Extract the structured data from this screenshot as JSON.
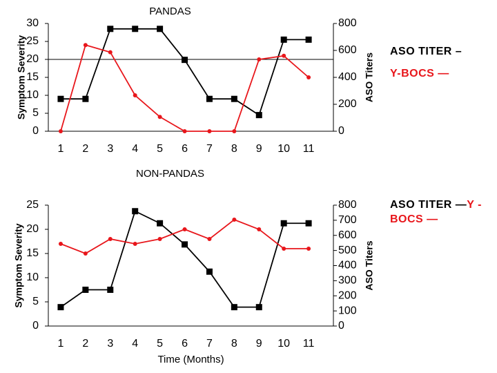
{
  "colors": {
    "aso": "#000000",
    "ybocs": "#e8161b"
  },
  "chart_data": [
    {
      "type": "line",
      "title": "PANDAS",
      "xlabel": "",
      "ylabel": "Symptom Severity",
      "y2label": "ASO Titers",
      "categories": [
        "1",
        "2",
        "3",
        "4",
        "5",
        "6",
        "7",
        "8",
        "9",
        "10",
        "11"
      ],
      "ylim": [
        0,
        30
      ],
      "yticks": [
        "0",
        "5",
        "10",
        "15",
        "20",
        "25",
        "30"
      ],
      "y2lim": [
        0,
        800
      ],
      "y2ticks": [
        "0",
        "200",
        "400",
        "600",
        "800"
      ],
      "reference_line": 20,
      "series": [
        {
          "name": "ASO TITER",
          "axis": "right",
          "marker": "square",
          "values": [
            240,
            240,
            760,
            760,
            760,
            530,
            240,
            240,
            120,
            680,
            680
          ]
        },
        {
          "name": "Y-BOCS",
          "axis": "left",
          "marker": "dot",
          "values": [
            0,
            24,
            22,
            10,
            4,
            0,
            0,
            0,
            20,
            21,
            15
          ]
        }
      ]
    },
    {
      "type": "line",
      "title": "NON-PANDAS",
      "xlabel": "Time (Months)",
      "ylabel": "Symptom Severity",
      "y2label": "ASO Titers",
      "categories": [
        "1",
        "2",
        "3",
        "4",
        "5",
        "6",
        "7",
        "8",
        "9",
        "10",
        "11"
      ],
      "ylim": [
        0,
        25
      ],
      "yticks": [
        "0",
        "5",
        "10",
        "15",
        "20",
        "25"
      ],
      "y2lim": [
        0,
        800
      ],
      "y2ticks": [
        "0",
        "100",
        "200",
        "300",
        "400",
        "500",
        "600",
        "700",
        "800"
      ],
      "series": [
        {
          "name": "ASO TITER",
          "axis": "right",
          "marker": "square",
          "values": [
            125,
            240,
            240,
            760,
            680,
            540,
            360,
            125,
            125,
            680,
            680
          ]
        },
        {
          "name": "Y-BOCS",
          "axis": "left",
          "marker": "dot",
          "values": [
            17,
            15,
            18,
            17,
            18,
            20,
            18,
            22,
            20,
            16,
            16
          ]
        }
      ]
    }
  ],
  "legend_top": {
    "aso": "ASO TITER –",
    "ybocs": "Y-BOCS —"
  },
  "legend_bottom": {
    "aso": "ASO TITER —",
    "ybocs": "Y -BOCS —"
  }
}
